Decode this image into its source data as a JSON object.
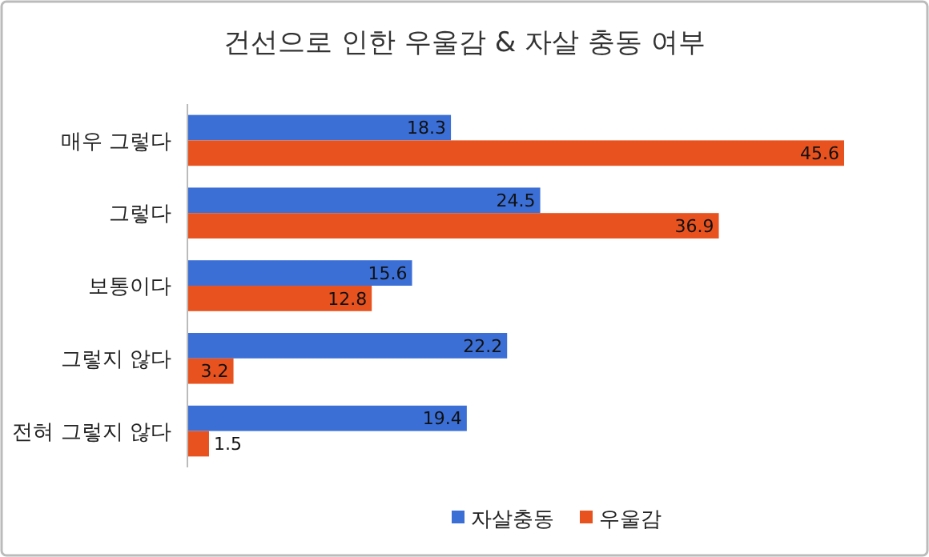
{
  "chart_data": {
    "type": "bar",
    "orientation": "horizontal",
    "title": "건선으로 인한 우울감 & 자살 충동 여부",
    "categories": [
      "매우 그렇다",
      "그렇다",
      "보통이다",
      "그렇지 않다",
      "전혀 그렇지 않다"
    ],
    "series": [
      {
        "name": "자살충동",
        "color": "#3b6fd6",
        "values": [
          18.3,
          24.5,
          15.6,
          22.2,
          19.4
        ]
      },
      {
        "name": "우울감",
        "color": "#e8521f",
        "values": [
          45.6,
          36.9,
          12.8,
          3.2,
          1.5
        ]
      }
    ],
    "data_labels": true,
    "legend": "bottom",
    "grid": false
  }
}
